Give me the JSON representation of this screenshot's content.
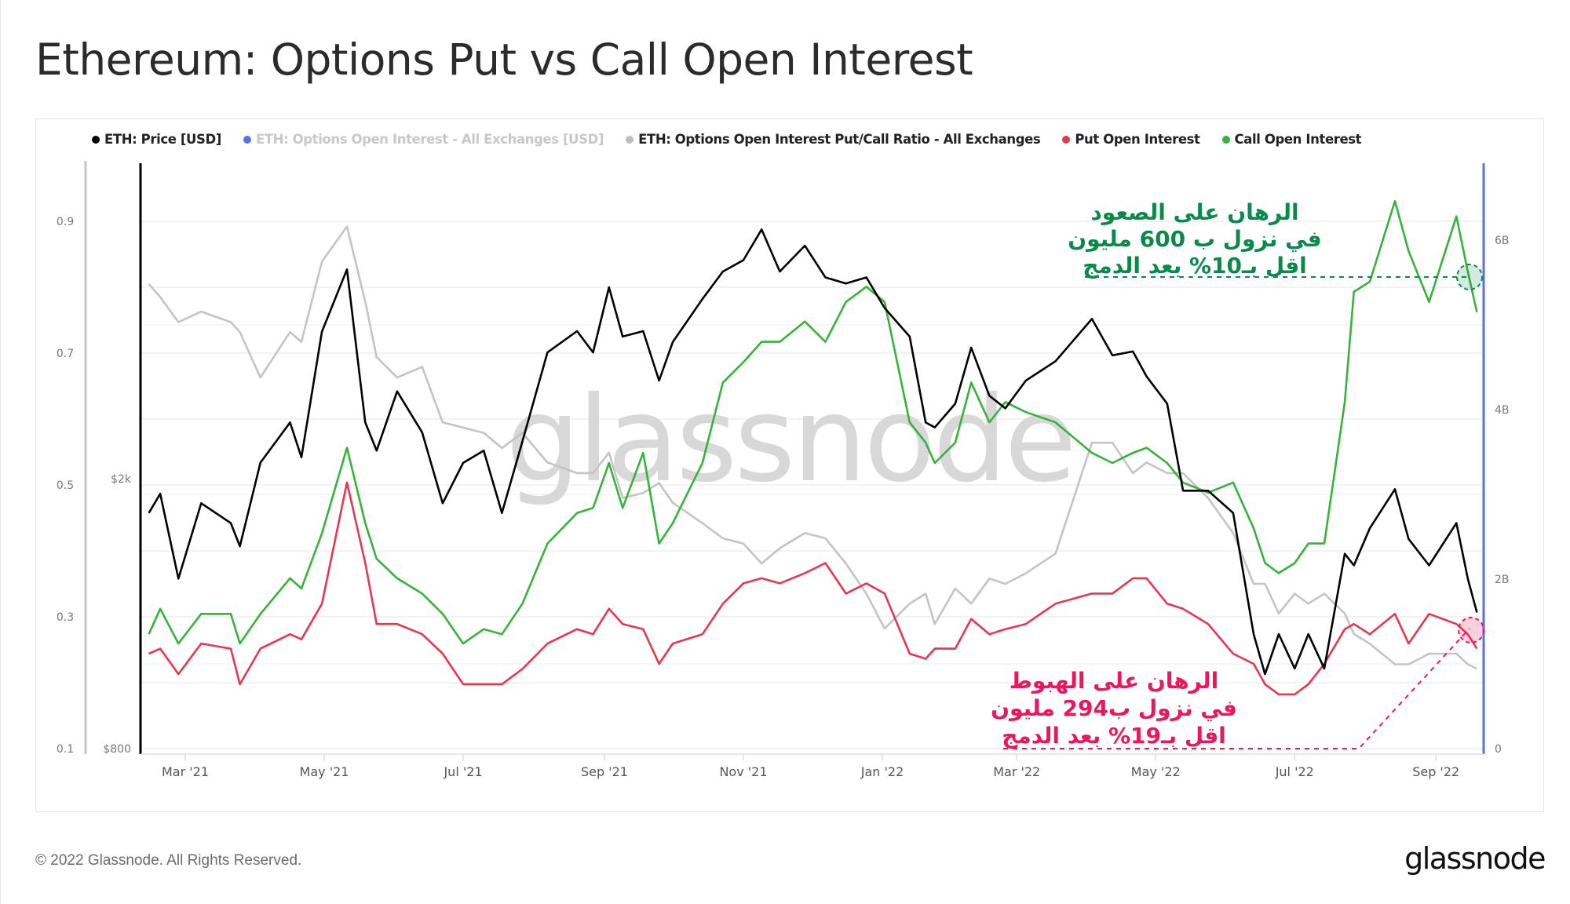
{
  "title": "Ethereum: Options Put vs Call Open Interest",
  "legend": [
    {
      "label": "ETH: Price [USD]",
      "color": "#000000",
      "muted": false
    },
    {
      "label": "ETH: Options Open Interest - All Exchanges [USD]",
      "color": "#5b6ee8",
      "muted": true
    },
    {
      "label": "ETH: Options Open Interest Put/Call Ratio - All Exchanges",
      "color": "#bdbdbd",
      "muted": false
    },
    {
      "label": "Put Open Interest",
      "color": "#e8364f",
      "muted": false
    },
    {
      "label": "Call Open Interest",
      "color": "#36b33a",
      "muted": false
    }
  ],
  "footer": {
    "copyright": "© 2022 Glassnode. All Rights Reserved.",
    "logo": "glassnode",
    "watermark": "glassnode"
  },
  "annotations": {
    "call": {
      "lines": [
        "الرهان على الصعود",
        "في نزول ب 600 مليون",
        "اقل بـ10% بعد الدمج"
      ],
      "color": "#0a8a4a"
    },
    "put": {
      "lines": [
        "الرهان على الهبوط",
        "في نزول ب294 مليون",
        "اقل بـ19% بعد الدمج"
      ],
      "color": "#f0145a"
    }
  },
  "chart_data": {
    "type": "line",
    "title": "Ethereum: Options Put vs Call Open Interest",
    "x_range": [
      "2021-02-13",
      "2022-09-19"
    ],
    "x_ticks": [
      "Mar '21",
      "May '21",
      "Jul '21",
      "Sep '21",
      "Nov '21",
      "Jan '22",
      "Mar '22",
      "May '22",
      "Jul '22",
      "Sep '22"
    ],
    "axes": {
      "ratio": {
        "ticks": [
          "0.1",
          "0.3",
          "0.5",
          "0.7",
          "0.9"
        ],
        "range": [
          0.1,
          0.9
        ]
      },
      "price": {
        "ticks": [
          "$800",
          "$2k"
        ],
        "scale": "log"
      },
      "open_interest": {
        "ticks": [
          "0",
          "2B",
          "4B",
          "6B"
        ],
        "range_usd_billions": [
          0,
          6.9
        ]
      }
    },
    "grid": true,
    "legend_position": "top-left",
    "x": [
      "2021-02-13",
      "2021-02-18",
      "2021-02-26",
      "2021-03-08",
      "2021-03-21",
      "2021-03-25",
      "2021-04-03",
      "2021-04-16",
      "2021-04-21",
      "2021-04-30",
      "2021-05-11",
      "2021-05-19",
      "2021-05-24",
      "2021-06-02",
      "2021-06-13",
      "2021-06-22",
      "2021-07-01",
      "2021-07-10",
      "2021-07-18",
      "2021-07-27",
      "2021-08-07",
      "2021-08-20",
      "2021-08-27",
      "2021-09-03",
      "2021-09-09",
      "2021-09-18",
      "2021-09-25",
      "2021-10-01",
      "2021-10-14",
      "2021-10-23",
      "2021-11-01",
      "2021-11-09",
      "2021-11-17",
      "2021-11-28",
      "2021-12-07",
      "2021-12-16",
      "2021-12-25",
      "2022-01-02",
      "2022-01-13",
      "2022-01-20",
      "2022-01-24",
      "2022-02-02",
      "2022-02-09",
      "2022-02-17",
      "2022-02-24",
      "2022-03-05",
      "2022-03-18",
      "2022-04-03",
      "2022-04-12",
      "2022-04-21",
      "2022-04-27",
      "2022-05-06",
      "2022-05-13",
      "2022-05-24",
      "2022-06-04",
      "2022-06-13",
      "2022-06-18",
      "2022-06-24",
      "2022-07-01",
      "2022-07-07",
      "2022-07-14",
      "2022-07-23",
      "2022-07-27",
      "2022-08-03",
      "2022-08-14",
      "2022-08-20",
      "2022-08-29",
      "2022-09-10",
      "2022-09-15",
      "2022-09-19"
    ],
    "series": [
      {
        "name": "ETH: Price [USD]",
        "axis": "price",
        "color": "#000000",
        "values": [
          1780,
          1900,
          1425,
          1840,
          1720,
          1590,
          2112,
          2420,
          2150,
          3295,
          4070,
          2420,
          2200,
          2690,
          2340,
          1840,
          2110,
          2200,
          1780,
          2270,
          3070,
          3300,
          3070,
          3830,
          3240,
          3300,
          2790,
          3180,
          3680,
          4040,
          4200,
          4660,
          4040,
          4410,
          3960,
          3880,
          3960,
          3570,
          3240,
          2420,
          2380,
          2580,
          3120,
          2650,
          2540,
          2790,
          2980,
          3440,
          3040,
          3080,
          2830,
          2580,
          1920,
          1920,
          1780,
          1180,
          1030,
          1180,
          1050,
          1180,
          1050,
          1550,
          1490,
          1690,
          1930,
          1630,
          1490,
          1720,
          1425,
          1270
        ]
      },
      {
        "name": "ETH: Options Open Interest Put/Call Ratio - All Exchanges",
        "axis": "ratio",
        "color": "#c4c4c4",
        "values": [
          0.805,
          0.785,
          0.747,
          0.763,
          0.747,
          0.732,
          0.663,
          0.732,
          0.717,
          0.839,
          0.892,
          0.778,
          0.694,
          0.663,
          0.679,
          0.595,
          0.587,
          0.579,
          0.556,
          0.579,
          0.534,
          0.518,
          0.518,
          0.549,
          0.48,
          0.488,
          0.503,
          0.473,
          0.442,
          0.419,
          0.411,
          0.381,
          0.404,
          0.427,
          0.419,
          0.381,
          0.335,
          0.282,
          0.32,
          0.335,
          0.289,
          0.343,
          0.32,
          0.358,
          0.35,
          0.366,
          0.396,
          0.564,
          0.564,
          0.518,
          0.534,
          0.518,
          0.518,
          0.48,
          0.427,
          0.35,
          0.35,
          0.305,
          0.335,
          0.32,
          0.335,
          0.305,
          0.274,
          0.259,
          0.228,
          0.228,
          0.244,
          0.244,
          0.228,
          0.221
        ]
      },
      {
        "name": "Call Open Interest",
        "axis": "open_interest",
        "color": "#36b33a",
        "values": [
          1.35,
          1.65,
          1.24,
          1.59,
          1.59,
          1.24,
          1.59,
          2.01,
          1.89,
          2.54,
          3.55,
          2.66,
          2.24,
          2.01,
          1.83,
          1.59,
          1.24,
          1.41,
          1.35,
          1.71,
          2.42,
          2.78,
          2.84,
          3.37,
          2.84,
          3.49,
          2.42,
          2.66,
          3.37,
          4.32,
          4.56,
          4.8,
          4.8,
          5.04,
          4.8,
          5.27,
          5.45,
          5.27,
          3.85,
          3.61,
          3.37,
          3.61,
          4.32,
          3.85,
          4.09,
          3.97,
          3.85,
          3.49,
          3.37,
          3.49,
          3.55,
          3.37,
          3.14,
          3.02,
          3.14,
          2.6,
          2.19,
          2.07,
          2.19,
          2.42,
          2.42,
          4.09,
          5.39,
          5.51,
          6.46,
          5.87,
          5.27,
          6.28,
          5.63,
          5.15
        ]
      },
      {
        "name": "Put Open Interest",
        "axis": "open_interest",
        "color": "#e8364f",
        "values": [
          1.12,
          1.18,
          0.88,
          1.24,
          1.18,
          0.76,
          1.18,
          1.35,
          1.29,
          1.71,
          3.14,
          2.19,
          1.47,
          1.47,
          1.35,
          1.12,
          0.76,
          0.76,
          0.76,
          0.94,
          1.24,
          1.41,
          1.35,
          1.65,
          1.47,
          1.41,
          1.0,
          1.24,
          1.35,
          1.71,
          1.95,
          2.01,
          1.95,
          2.07,
          2.19,
          1.83,
          1.95,
          1.83,
          1.12,
          1.06,
          1.18,
          1.18,
          1.53,
          1.35,
          1.41,
          1.47,
          1.71,
          1.83,
          1.83,
          2.01,
          2.01,
          1.71,
          1.65,
          1.47,
          1.12,
          1.0,
          0.76,
          0.64,
          0.64,
          0.76,
          1.0,
          1.41,
          1.47,
          1.35,
          1.59,
          1.24,
          1.59,
          1.47,
          1.35,
          1.18
        ]
      }
    ]
  }
}
